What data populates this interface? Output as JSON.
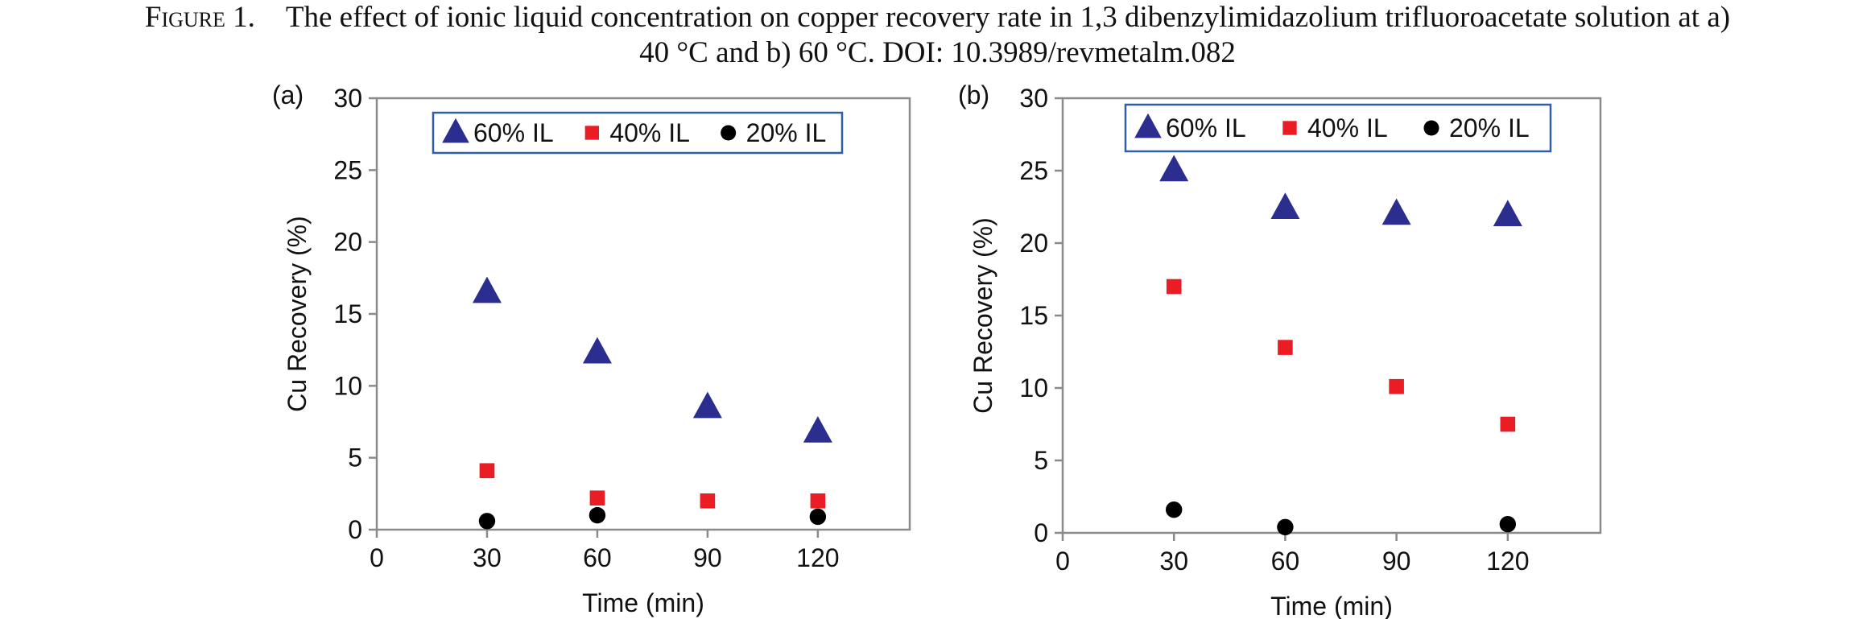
{
  "caption": {
    "label": "Figure 1.",
    "line1": "The effect of ionic liquid concentration on copper recovery rate in 1,3 dibenzylimidazolium trifluoroacetate solution at a)",
    "line2": "40 °C and b) 60 °C. DOI: 10.3989/revmetalm.082"
  },
  "colors": {
    "series_60": "#2b2d8f",
    "series_40": "#ea1c24",
    "series_20": "#000000",
    "axis": "#8a8a8a",
    "legend_border": "#2f5fa8"
  },
  "chart_data": [
    {
      "type": "scatter",
      "panel_label": "(a)",
      "xlabel": "Time (min)",
      "ylabel": "Cu Recovery (%)",
      "xlim": [
        0,
        145
      ],
      "ylim": [
        0,
        30
      ],
      "xticks": [
        0,
        30,
        60,
        90,
        120
      ],
      "yticks": [
        0,
        5,
        10,
        15,
        20,
        25,
        30
      ],
      "grid": false,
      "legend_position": "top",
      "series": [
        {
          "name": "60% IL",
          "marker": "triangle",
          "x": [
            30,
            60,
            90,
            120
          ],
          "y": [
            16.5,
            12.3,
            8.5,
            6.8
          ]
        },
        {
          "name": "40% IL",
          "marker": "square",
          "x": [
            30,
            60,
            90,
            120
          ],
          "y": [
            4.1,
            2.2,
            2.0,
            2.0
          ]
        },
        {
          "name": "20% IL",
          "marker": "circle",
          "x": [
            30,
            60,
            90,
            120
          ],
          "y": [
            0.6,
            1.0,
            null,
            0.9
          ]
        }
      ]
    },
    {
      "type": "scatter",
      "panel_label": "(b)",
      "xlabel": "Time (min)",
      "ylabel": "Cu Recovery (%)",
      "xlim": [
        0,
        145
      ],
      "ylim": [
        0,
        30
      ],
      "xticks": [
        0,
        30,
        60,
        90,
        120
      ],
      "yticks": [
        0,
        5,
        10,
        15,
        20,
        25,
        30
      ],
      "grid": false,
      "legend_position": "top",
      "series": [
        {
          "name": "60% IL",
          "marker": "triangle",
          "x": [
            30,
            60,
            90,
            120
          ],
          "y": [
            25.0,
            22.4,
            22.0,
            21.9
          ]
        },
        {
          "name": "40% IL",
          "marker": "square",
          "x": [
            30,
            60,
            90,
            120
          ],
          "y": [
            17.0,
            12.8,
            10.1,
            7.5
          ]
        },
        {
          "name": "20% IL",
          "marker": "circle",
          "x": [
            30,
            60,
            90,
            120
          ],
          "y": [
            1.6,
            0.4,
            null,
            0.6
          ]
        }
      ]
    }
  ]
}
